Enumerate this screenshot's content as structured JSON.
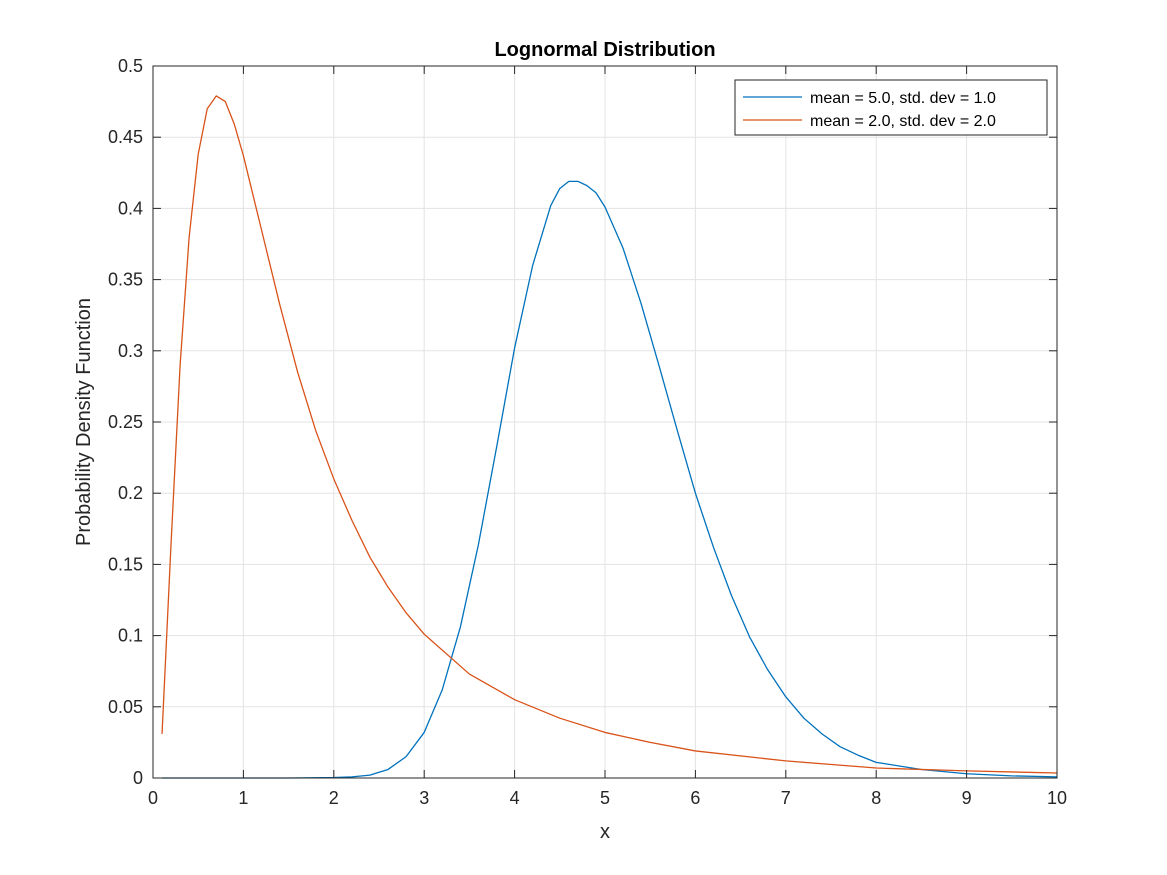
{
  "chart_data": {
    "type": "line",
    "title": "Lognormal Distribution",
    "xlabel": "x",
    "ylabel": "Probability Density Function",
    "xlim": [
      0,
      10
    ],
    "ylim": [
      0,
      0.5
    ],
    "x_ticks": [
      "0",
      "1",
      "2",
      "3",
      "4",
      "5",
      "6",
      "7",
      "8",
      "9",
      "10"
    ],
    "y_ticks": [
      "0",
      "0.05",
      "0.1",
      "0.15",
      "0.2",
      "0.25",
      "0.3",
      "0.35",
      "0.4",
      "0.45",
      "0.5"
    ],
    "grid": true,
    "legend_position": "top-right",
    "series": [
      {
        "name": "mean = 5.0, std. dev = 1.0",
        "color": "#0072BD",
        "x": [
          0.1,
          0.5,
          1.0,
          1.5,
          2.0,
          2.2,
          2.4,
          2.6,
          2.8,
          3.0,
          3.2,
          3.4,
          3.6,
          3.8,
          4.0,
          4.2,
          4.4,
          4.5,
          4.6,
          4.7,
          4.8,
          4.9,
          5.0,
          5.2,
          5.4,
          5.6,
          5.8,
          6.0,
          6.2,
          6.4,
          6.6,
          6.8,
          7.0,
          7.2,
          7.4,
          7.6,
          7.8,
          8.0,
          8.5,
          9.0,
          9.5,
          10.0
        ],
        "y": [
          0,
          0,
          0,
          0,
          0.0003,
          0.0008,
          0.002,
          0.006,
          0.015,
          0.032,
          0.062,
          0.106,
          0.164,
          0.232,
          0.302,
          0.36,
          0.402,
          0.414,
          0.419,
          0.419,
          0.416,
          0.411,
          0.401,
          0.372,
          0.333,
          0.289,
          0.244,
          0.2,
          0.162,
          0.128,
          0.099,
          0.076,
          0.057,
          0.042,
          0.031,
          0.022,
          0.016,
          0.011,
          0.006,
          0.003,
          0.0015,
          0.0008
        ]
      },
      {
        "name": "mean = 2.0, std. dev = 2.0",
        "color": "#D95319",
        "x": [
          0.1,
          0.2,
          0.3,
          0.4,
          0.5,
          0.6,
          0.7,
          0.8,
          0.9,
          1.0,
          1.2,
          1.4,
          1.6,
          1.8,
          2.0,
          2.2,
          2.4,
          2.6,
          2.8,
          3.0,
          3.5,
          4.0,
          4.5,
          5.0,
          5.5,
          6.0,
          7.0,
          8.0,
          9.0,
          10.0
        ],
        "y": [
          0.031,
          0.165,
          0.29,
          0.38,
          0.438,
          0.47,
          0.479,
          0.475,
          0.459,
          0.437,
          0.385,
          0.333,
          0.285,
          0.244,
          0.21,
          0.181,
          0.155,
          0.134,
          0.116,
          0.101,
          0.073,
          0.055,
          0.042,
          0.032,
          0.025,
          0.019,
          0.012,
          0.007,
          0.005,
          0.0035
        ]
      }
    ]
  }
}
